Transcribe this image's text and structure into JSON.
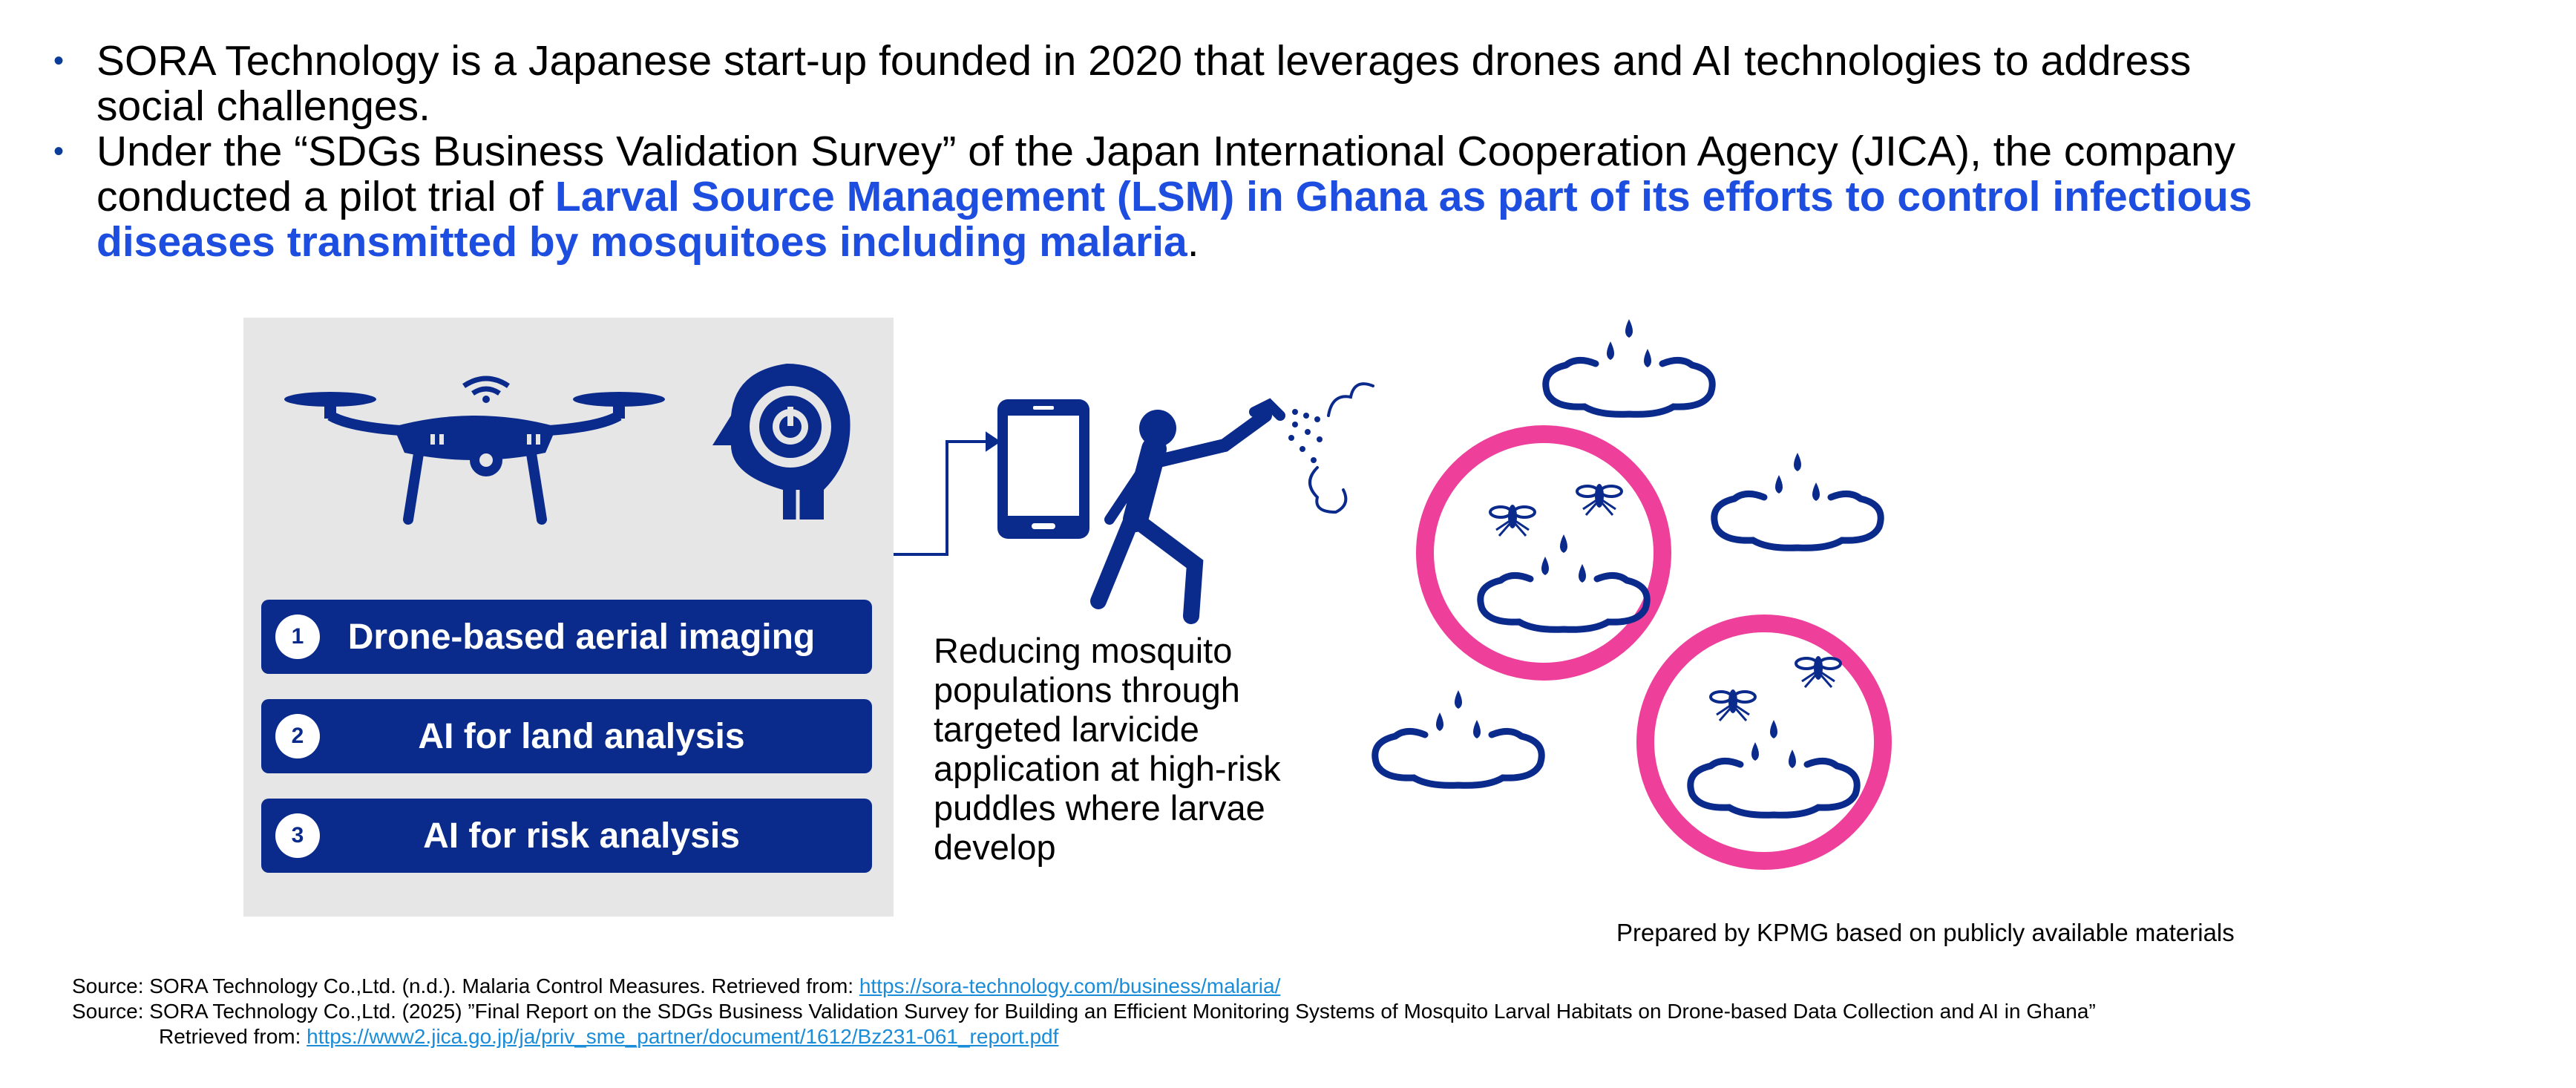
{
  "bullets": [
    {
      "text": "SORA Technology is a Japanese start-up founded in 2020 that leverages drones and AI technologies to address social challenges."
    },
    {
      "pre": "Under the “SDGs Business Validation Survey” of the Japan International Cooperation Agency (JICA), the company conducted a pilot trial of ",
      "highlight": "Larval Source Management (LSM) in Ghana as part of its efforts to control infectious diseases transmitted by mosquitoes including malaria",
      "post": "."
    }
  ],
  "steps": [
    {
      "num": "1",
      "label": "Drone-based aerial imaging"
    },
    {
      "num": "2",
      "label": "AI for land analysis"
    },
    {
      "num": "3",
      "label": "AI for risk analysis"
    }
  ],
  "description": "Reducing mosquito populations through targeted larvicide application at high-risk puddles where larvae develop",
  "prepared_by": "Prepared by KPMG based on publicly available materials",
  "sources": {
    "s1_text": "Source: SORA Technology Co.,Ltd. (n.d.). Malaria Control Measures. Retrieved from: ",
    "s1_link": "https://sora-technology.com/business/malaria/",
    "s2_text": "Source: SORA Technology Co.,Ltd. (2025) ”Final Report on the SDGs Business Validation Survey for Building an Efficient Monitoring Systems of Mosquito Larval Habitats on Drone-based Data Collection and AI in Ghana”",
    "s2_retrieved": "Retrieved from: ",
    "s2_link": "https://www2.jica.go.jp/ja/priv_sme_partner/document/1612/Bz231-061_report.pdf"
  },
  "colors": {
    "navy": "#0a2a8c",
    "pink": "#ee3f9b",
    "highlight": "#1e4ee0",
    "link": "#1a8cd8"
  },
  "icons": [
    "drone-icon",
    "ai-head-gear-icon",
    "smartphone-icon",
    "person-spraying-icon",
    "puddle-icon",
    "mosquito-icon"
  ]
}
